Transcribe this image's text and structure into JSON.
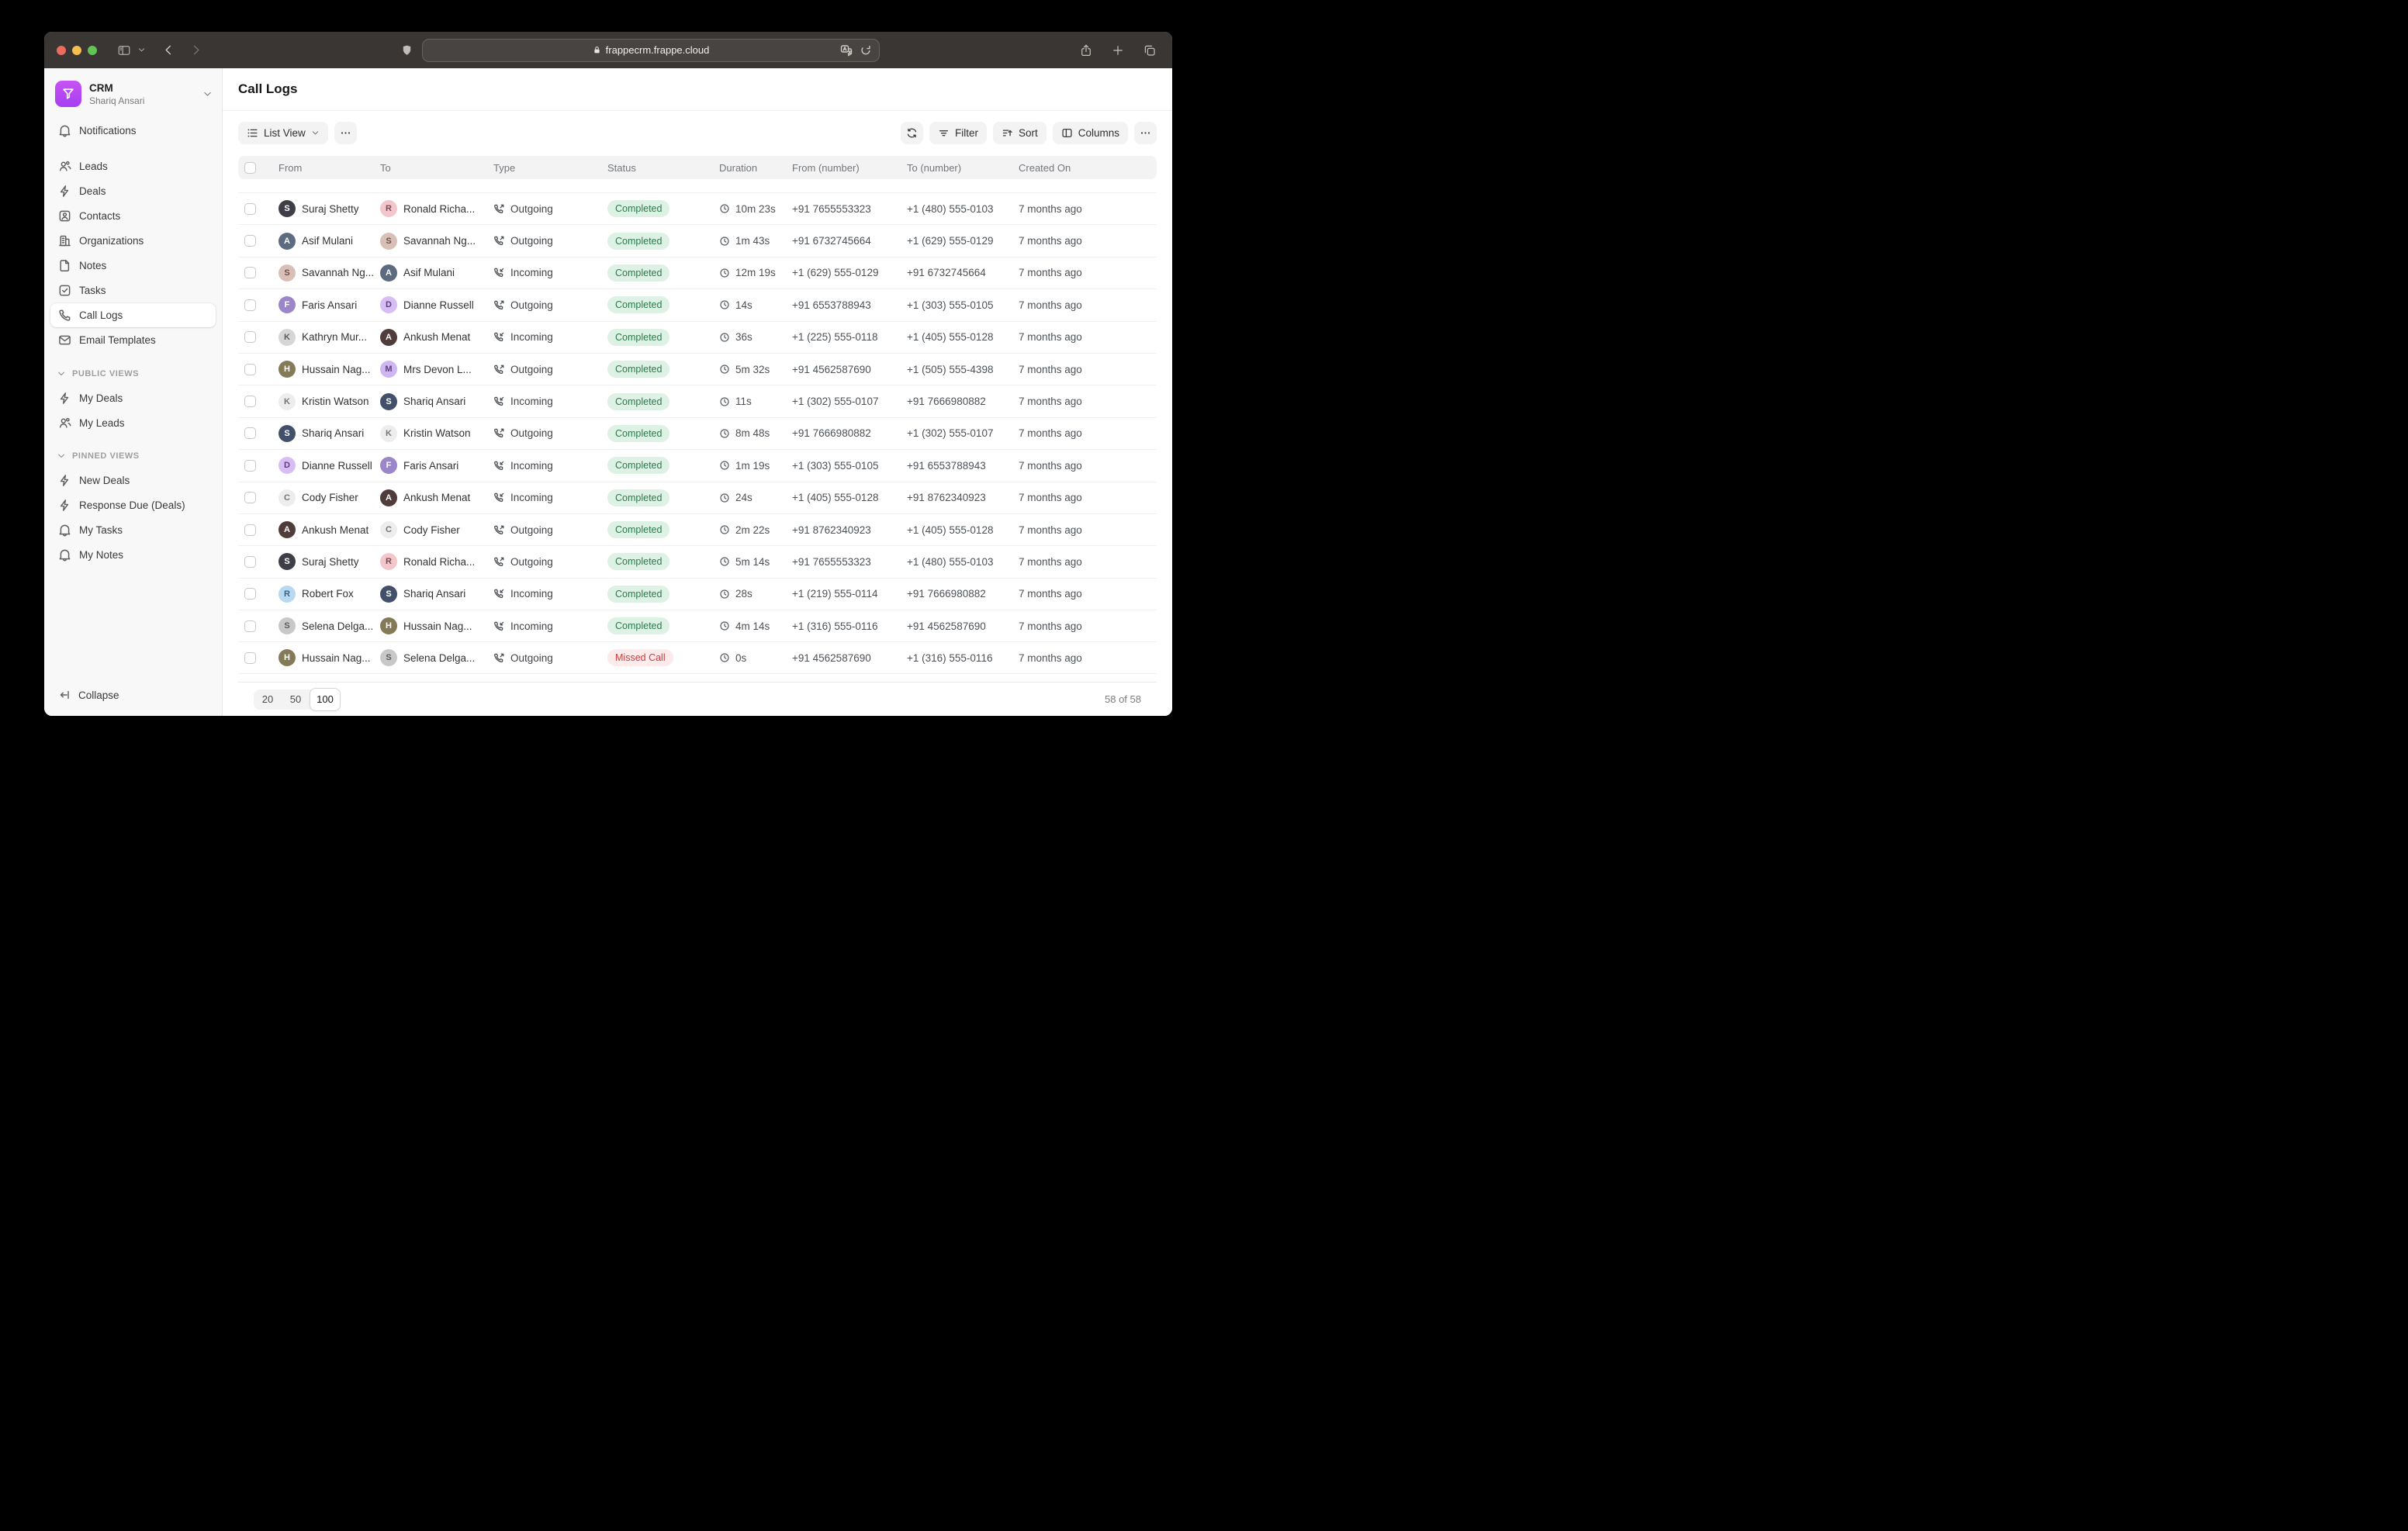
{
  "browser": {
    "url": "frappecrm.frappe.cloud",
    "traffic_lights": [
      {
        "name": "close",
        "color": "#ed6a5e"
      },
      {
        "name": "minimize",
        "color": "#f4bf4f"
      },
      {
        "name": "zoom",
        "color": "#61c554"
      }
    ]
  },
  "sidebar": {
    "workspace": {
      "app": "CRM",
      "user": "Shariq Ansari"
    },
    "nav": [
      {
        "label": "Notifications",
        "icon": "bell",
        "active": false,
        "gap_after": true
      },
      {
        "label": "Leads",
        "icon": "users",
        "active": false
      },
      {
        "label": "Deals",
        "icon": "zap",
        "active": false
      },
      {
        "label": "Contacts",
        "icon": "contact-card",
        "active": false
      },
      {
        "label": "Organizations",
        "icon": "building",
        "active": false
      },
      {
        "label": "Notes",
        "icon": "file",
        "active": false
      },
      {
        "label": "Tasks",
        "icon": "check-square",
        "active": false
      },
      {
        "label": "Call Logs",
        "icon": "phone",
        "active": true
      },
      {
        "label": "Email Templates",
        "icon": "mail",
        "active": false
      }
    ],
    "sections": [
      {
        "title": "PUBLIC VIEWS",
        "items": [
          {
            "label": "My Deals",
            "icon": "zap"
          },
          {
            "label": "My Leads",
            "icon": "users"
          }
        ]
      },
      {
        "title": "PINNED VIEWS",
        "items": [
          {
            "label": "New Deals",
            "icon": "zap"
          },
          {
            "label": "Response Due (Deals)",
            "icon": "zap"
          },
          {
            "label": "My Tasks",
            "icon": "bell"
          },
          {
            "label": "My Notes",
            "icon": "bell"
          }
        ]
      }
    ],
    "collapse_label": "Collapse"
  },
  "header": {
    "title": "Call Logs"
  },
  "toolbar": {
    "view_label": "List View",
    "filter_label": "Filter",
    "sort_label": "Sort",
    "columns_label": "Columns"
  },
  "table": {
    "columns": [
      "From",
      "To",
      "Type",
      "Status",
      "Duration",
      "From (number)",
      "To (number)",
      "Created On"
    ],
    "rows": [
      {
        "from": "Suraj Shetty",
        "to": "Ronald Richa...",
        "type": "Outgoing",
        "status": "Completed",
        "duration": "10m 23s",
        "from_number": "+91 7655553323",
        "to_number": "+1 (480) 555-0103",
        "created": "7 months ago"
      },
      {
        "from": "Asif Mulani",
        "to": "Savannah Ng...",
        "type": "Outgoing",
        "status": "Completed",
        "duration": "1m 43s",
        "from_number": "+91 6732745664",
        "to_number": "+1 (629) 555-0129",
        "created": "7 months ago"
      },
      {
        "from": "Savannah Ng...",
        "to": "Asif Mulani",
        "type": "Incoming",
        "status": "Completed",
        "duration": "12m 19s",
        "from_number": "+1 (629) 555-0129",
        "to_number": "+91 6732745664",
        "created": "7 months ago"
      },
      {
        "from": "Faris Ansari",
        "to": "Dianne Russell",
        "type": "Outgoing",
        "status": "Completed",
        "duration": "14s",
        "from_number": "+91 6553788943",
        "to_number": "+1 (303) 555-0105",
        "created": "7 months ago"
      },
      {
        "from": "Kathryn Mur...",
        "to": "Ankush Menat",
        "type": "Incoming",
        "status": "Completed",
        "duration": "36s",
        "from_number": "+1 (225) 555-0118",
        "to_number": "+1 (405) 555-0128",
        "created": "7 months ago"
      },
      {
        "from": "Hussain Nag...",
        "to": "Mrs Devon L...",
        "type": "Outgoing",
        "status": "Completed",
        "duration": "5m 32s",
        "from_number": "+91 4562587690",
        "to_number": "+1 (505) 555-4398",
        "created": "7 months ago"
      },
      {
        "from": "Kristin Watson",
        "to": "Shariq Ansari",
        "type": "Incoming",
        "status": "Completed",
        "duration": "11s",
        "from_number": "+1 (302) 555-0107",
        "to_number": "+91 7666980882",
        "created": "7 months ago"
      },
      {
        "from": "Shariq Ansari",
        "to": "Kristin Watson",
        "type": "Outgoing",
        "status": "Completed",
        "duration": "8m 48s",
        "from_number": "+91 7666980882",
        "to_number": "+1 (302) 555-0107",
        "created": "7 months ago"
      },
      {
        "from": "Dianne Russell",
        "to": "Faris Ansari",
        "type": "Incoming",
        "status": "Completed",
        "duration": "1m 19s",
        "from_number": "+1 (303) 555-0105",
        "to_number": "+91 6553788943",
        "created": "7 months ago"
      },
      {
        "from": "Cody Fisher",
        "to": "Ankush Menat",
        "type": "Incoming",
        "status": "Completed",
        "duration": "24s",
        "from_number": "+1 (405) 555-0128",
        "to_number": "+91 8762340923",
        "created": "7 months ago"
      },
      {
        "from": "Ankush Menat",
        "to": "Cody Fisher",
        "type": "Outgoing",
        "status": "Completed",
        "duration": "2m 22s",
        "from_number": "+91 8762340923",
        "to_number": "+1 (405) 555-0128",
        "created": "7 months ago"
      },
      {
        "from": "Suraj Shetty",
        "to": "Ronald Richa...",
        "type": "Outgoing",
        "status": "Completed",
        "duration": "5m 14s",
        "from_number": "+91 7655553323",
        "to_number": "+1 (480) 555-0103",
        "created": "7 months ago"
      },
      {
        "from": "Robert Fox",
        "to": "Shariq Ansari",
        "type": "Incoming",
        "status": "Completed",
        "duration": "28s",
        "from_number": "+1 (219) 555-0114",
        "to_number": "+91 7666980882",
        "created": "7 months ago"
      },
      {
        "from": "Selena Delga...",
        "to": "Hussain Nag...",
        "type": "Incoming",
        "status": "Completed",
        "duration": "4m 14s",
        "from_number": "+1 (316) 555-0116",
        "to_number": "+91 4562587690",
        "created": "7 months ago"
      },
      {
        "from": "Hussain Nag...",
        "to": "Selena Delga...",
        "type": "Outgoing",
        "status": "Missed Call",
        "duration": "0s",
        "from_number": "+91 4562587690",
        "to_number": "+1 (316) 555-0116",
        "created": "7 months ago"
      }
    ]
  },
  "avatars": {
    "Suraj Shetty": {
      "initial": "S",
      "bg": "#3e3e46",
      "fg": "#ffffff"
    },
    "Ronald Richa...": {
      "initial": "R",
      "bg": "#f3c6cc",
      "fg": "#7a4a52"
    },
    "Asif Mulani": {
      "initial": "A",
      "bg": "#5c6b80",
      "fg": "#ffffff"
    },
    "Savannah Ng...": {
      "initial": "S",
      "bg": "#d8c0b8",
      "fg": "#6d5148"
    },
    "Faris Ansari": {
      "initial": "F",
      "bg": "#9a86c9",
      "fg": "#ffffff"
    },
    "Dianne Russell": {
      "initial": "D",
      "bg": "#d8bdf4",
      "fg": "#5d3e7e"
    },
    "Kathryn Mur...": {
      "initial": "K",
      "bg": "#d6d6d6",
      "fg": "#5c5c5c"
    },
    "Ankush Menat": {
      "initial": "A",
      "bg": "#513c3c",
      "fg": "#ffffff"
    },
    "Hussain Nag...": {
      "initial": "H",
      "bg": "#857a58",
      "fg": "#ffffff"
    },
    "Mrs Devon L...": {
      "initial": "M",
      "bg": "#cdb6f1",
      "fg": "#5d3e7e"
    },
    "Kristin Watson": {
      "initial": "K",
      "bg": "#ededed",
      "fg": "#757575"
    },
    "Shariq Ansari": {
      "initial": "S",
      "bg": "#43506b",
      "fg": "#ffffff"
    },
    "Cody Fisher": {
      "initial": "C",
      "bg": "#ededed",
      "fg": "#757575"
    },
    "Robert Fox": {
      "initial": "R",
      "bg": "#b7d9f2",
      "fg": "#3e6180"
    },
    "Selena Delga...": {
      "initial": "S",
      "bg": "#c8c8c8",
      "fg": "#5c5c5c"
    }
  },
  "status_colors": {
    "Completed": {
      "bg": "#ddf1e4",
      "fg": "#2c7a4b"
    },
    "Missed Call": {
      "bg": "#fdeaea",
      "fg": "#d23b3b"
    }
  },
  "brand": {
    "logo_gradient_top": "#c753f4",
    "logo_gradient_bottom": "#a63ff0"
  },
  "footer": {
    "page_sizes": [
      "20",
      "50",
      "100"
    ],
    "selected_page_size": "100",
    "count": "58 of 58"
  }
}
